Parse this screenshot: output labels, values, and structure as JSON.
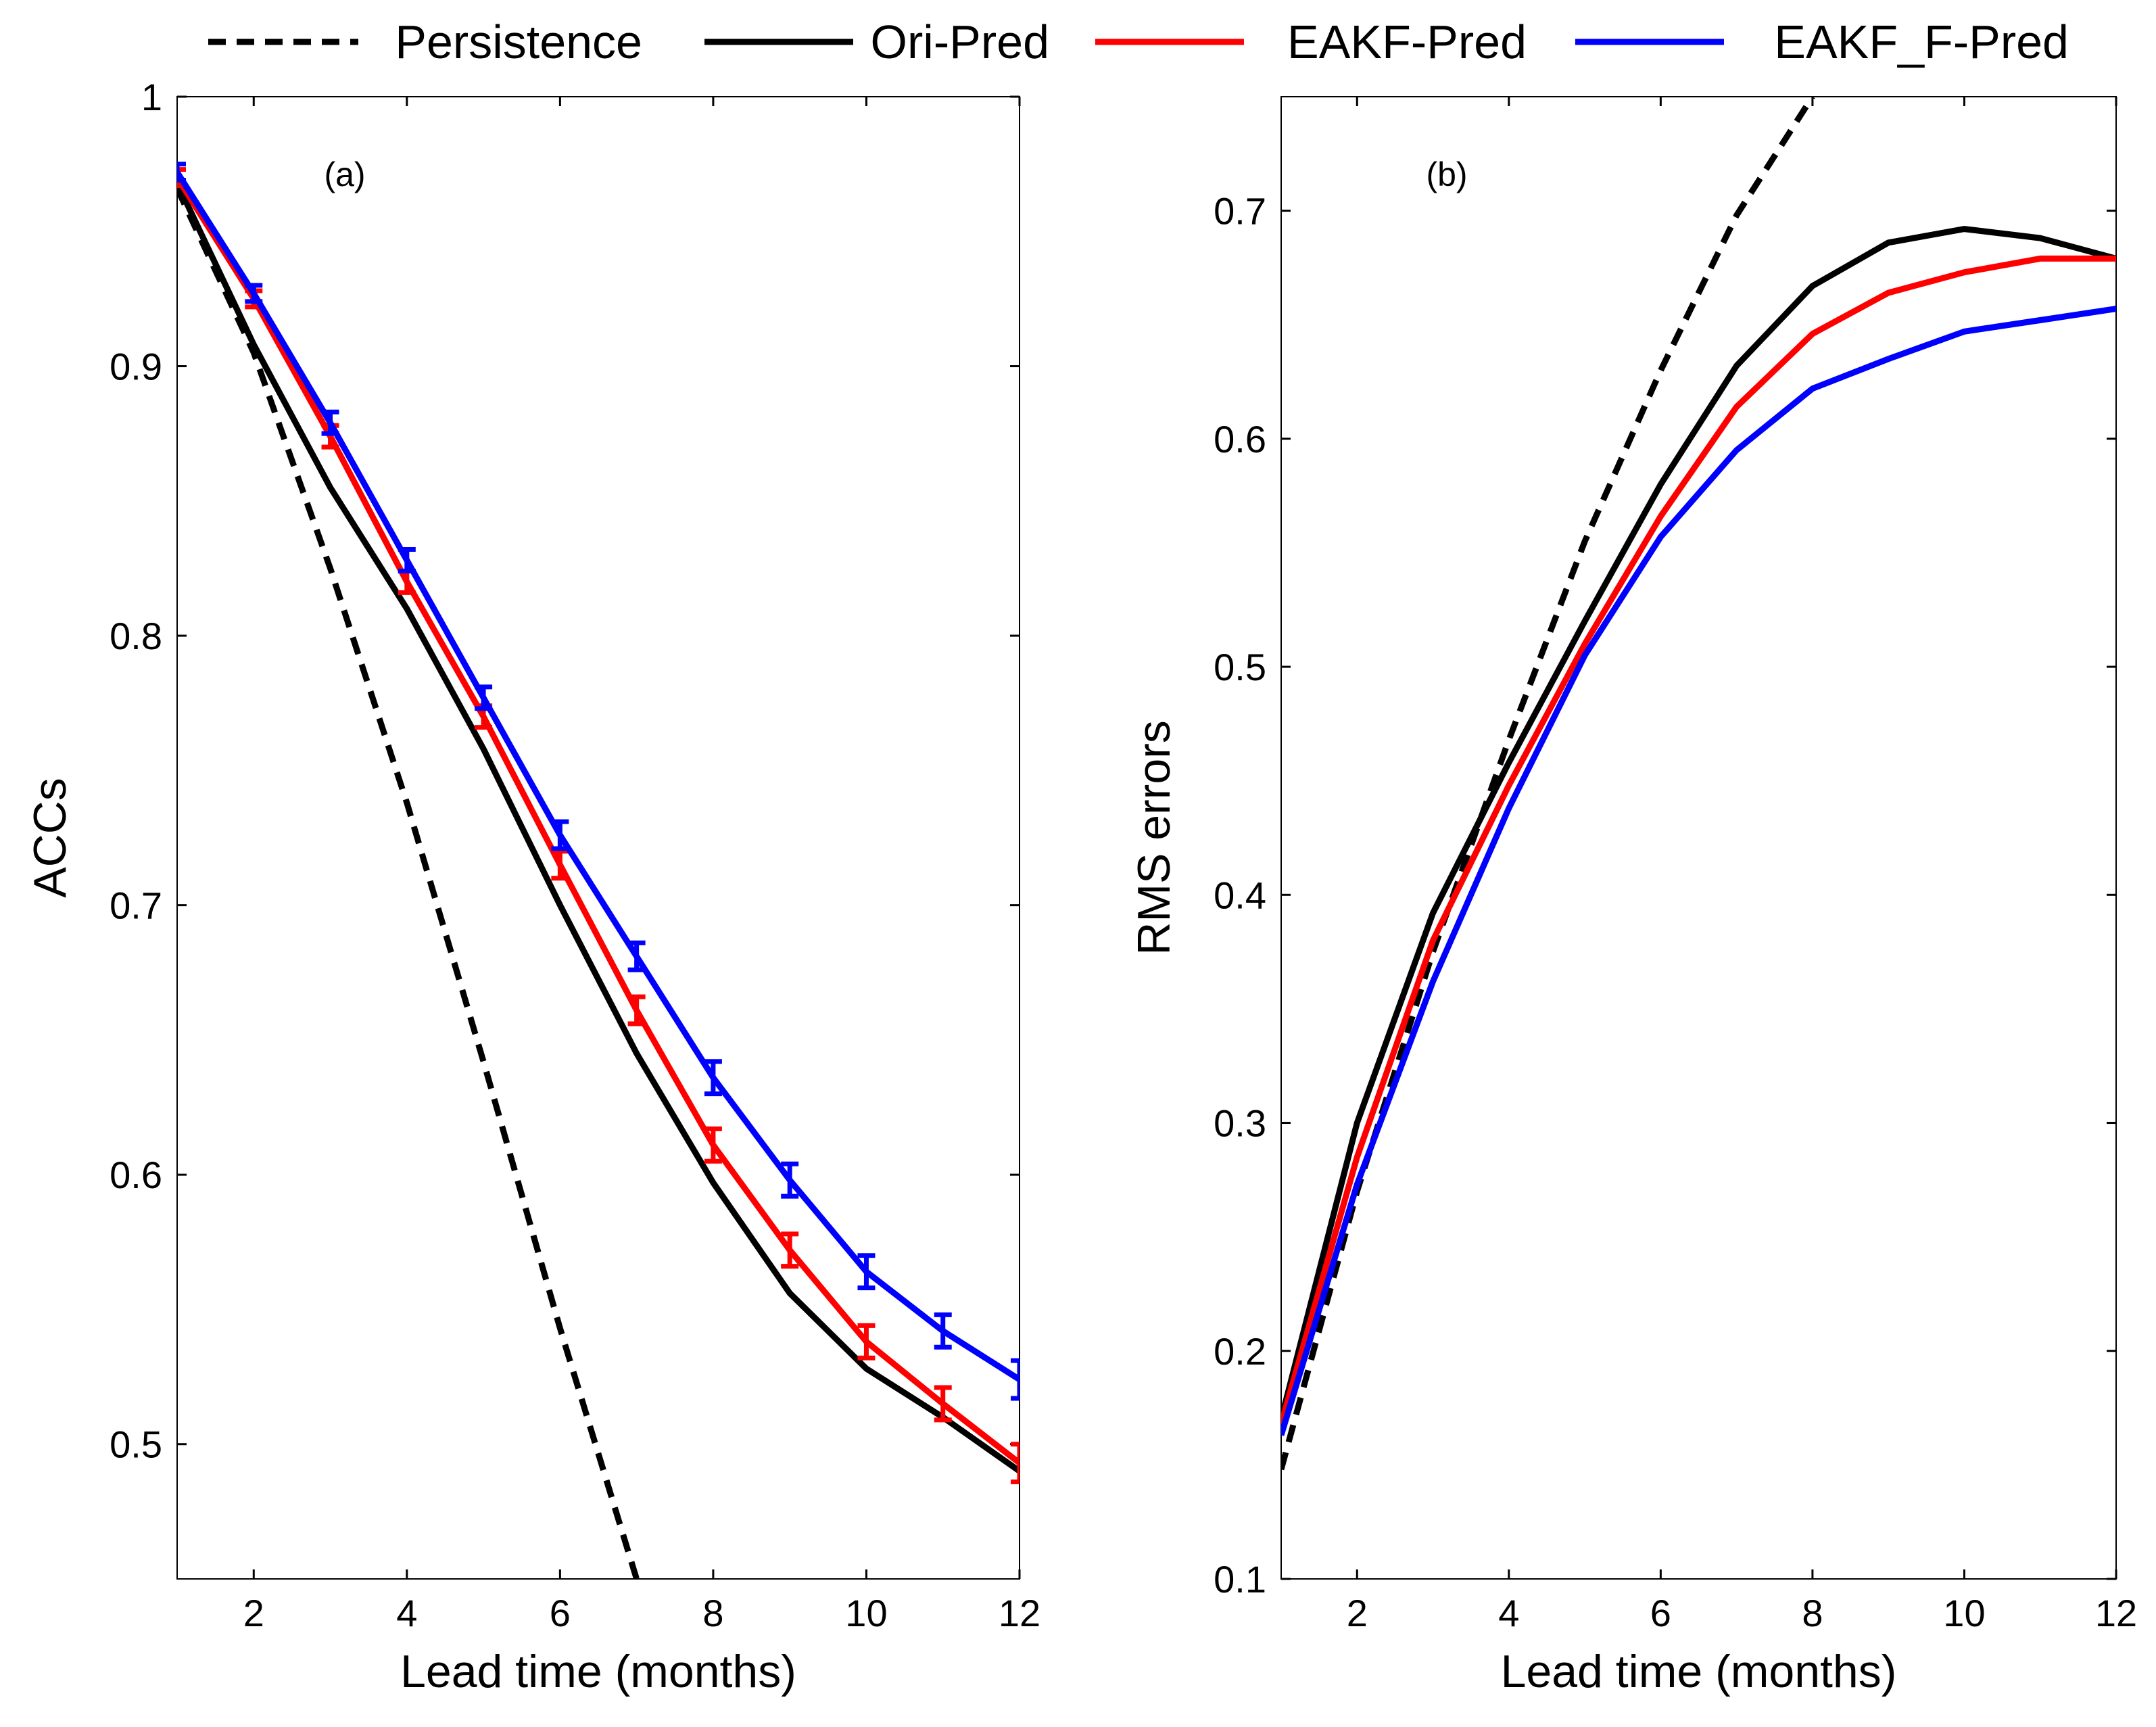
{
  "legend": {
    "items": [
      {
        "label": "Persistence",
        "color": "#000000",
        "dash": true
      },
      {
        "label": "Ori-Pred",
        "color": "#000000",
        "dash": false
      },
      {
        "label": "EAKF-Pred",
        "color": "#ff0000",
        "dash": false
      },
      {
        "label": "EAKF_F-Pred",
        "color": "#0000ff",
        "dash": false
      }
    ]
  },
  "chart_data": [
    {
      "type": "line",
      "tag": "(a)",
      "xlabel": "Lead time (months)",
      "ylabel": "ACCs",
      "xlim": [
        1,
        12
      ],
      "ylim": [
        0.45,
        1.0
      ],
      "xticks": [
        2,
        4,
        6,
        8,
        10,
        12
      ],
      "xtick_labels": [
        "2",
        "4",
        "6",
        "8",
        "10",
        "12"
      ],
      "yticks": [
        0.5,
        0.6,
        0.7,
        0.8,
        0.9,
        1.0
      ],
      "ytick_labels": [
        "0.5",
        "0.6",
        "0.7",
        "0.8",
        "0.9",
        "1"
      ],
      "grid": false,
      "series": [
        {
          "name": "Persistence",
          "color": "#000000",
          "dash": true,
          "x": [
            1,
            2,
            3,
            4,
            5,
            6,
            7
          ],
          "y": [
            0.966,
            0.905,
            0.825,
            0.738,
            0.642,
            0.543,
            0.45
          ]
        },
        {
          "name": "Ori-Pred",
          "color": "#000000",
          "dash": false,
          "x": [
            1,
            2,
            3,
            4,
            5,
            6,
            7,
            8,
            9,
            10,
            11,
            12
          ],
          "y": [
            0.968,
            0.908,
            0.855,
            0.81,
            0.758,
            0.7,
            0.645,
            0.597,
            0.556,
            0.528,
            0.51,
            0.49
          ]
        },
        {
          "name": "EAKF-Pred",
          "color": "#ff0000",
          "dash": false,
          "x": [
            1,
            2,
            3,
            4,
            5,
            6,
            7,
            8,
            9,
            10,
            11,
            12
          ],
          "y": [
            0.97,
            0.925,
            0.874,
            0.82,
            0.77,
            0.715,
            0.661,
            0.611,
            0.572,
            0.538,
            0.515,
            0.493
          ],
          "err": [
            0.003,
            0.003,
            0.004,
            0.004,
            0.004,
            0.005,
            0.005,
            0.006,
            0.006,
            0.006,
            0.006,
            0.007
          ]
        },
        {
          "name": "EAKF_F-Pred",
          "color": "#0000ff",
          "dash": false,
          "x": [
            1,
            2,
            3,
            4,
            5,
            6,
            7,
            8,
            9,
            10,
            11,
            12
          ],
          "y": [
            0.972,
            0.927,
            0.879,
            0.828,
            0.777,
            0.726,
            0.681,
            0.636,
            0.598,
            0.564,
            0.542,
            0.524
          ],
          "err": [
            0.003,
            0.003,
            0.004,
            0.004,
            0.004,
            0.005,
            0.005,
            0.006,
            0.006,
            0.006,
            0.006,
            0.007
          ]
        }
      ]
    },
    {
      "type": "line",
      "tag": "(b)",
      "xlabel": "Lead time (months)",
      "ylabel": "RMS errors",
      "xlim": [
        1,
        12
      ],
      "ylim": [
        0.1,
        0.75
      ],
      "xticks": [
        2,
        4,
        6,
        8,
        10,
        12
      ],
      "xtick_labels": [
        "2",
        "4",
        "6",
        "8",
        "10",
        "12"
      ],
      "yticks": [
        0.1,
        0.2,
        0.3,
        0.4,
        0.5,
        0.6,
        0.7
      ],
      "ytick_labels": [
        "0.1",
        "0.2",
        "0.3",
        "0.4",
        "0.5",
        "0.6",
        "0.7"
      ],
      "grid": false,
      "series": [
        {
          "name": "Persistence",
          "color": "#000000",
          "dash": true,
          "x": [
            1,
            2,
            3,
            4,
            5,
            6,
            7,
            8
          ],
          "y": [
            0.148,
            0.27,
            0.375,
            0.468,
            0.555,
            0.63,
            0.698,
            0.75
          ]
        },
        {
          "name": "Ori-Pred",
          "color": "#000000",
          "dash": false,
          "x": [
            1,
            2,
            3,
            4,
            5,
            6,
            7,
            8,
            9,
            10,
            11,
            12
          ],
          "y": [
            0.17,
            0.3,
            0.392,
            0.458,
            0.52,
            0.58,
            0.632,
            0.667,
            0.686,
            0.692,
            0.688,
            0.679
          ]
        },
        {
          "name": "EAKF-Pred",
          "color": "#ff0000",
          "dash": false,
          "x": [
            1,
            2,
            3,
            4,
            5,
            6,
            7,
            8,
            9,
            10,
            11,
            12
          ],
          "y": [
            0.168,
            0.285,
            0.38,
            0.448,
            0.51,
            0.566,
            0.614,
            0.646,
            0.664,
            0.673,
            0.679,
            0.679
          ]
        },
        {
          "name": "EAKF_F-Pred",
          "color": "#0000ff",
          "dash": false,
          "x": [
            1,
            2,
            3,
            4,
            5,
            6,
            7,
            8,
            9,
            10,
            11,
            12
          ],
          "y": [
            0.163,
            0.273,
            0.362,
            0.438,
            0.505,
            0.557,
            0.595,
            0.622,
            0.635,
            0.647,
            0.652,
            0.657
          ]
        }
      ]
    }
  ]
}
